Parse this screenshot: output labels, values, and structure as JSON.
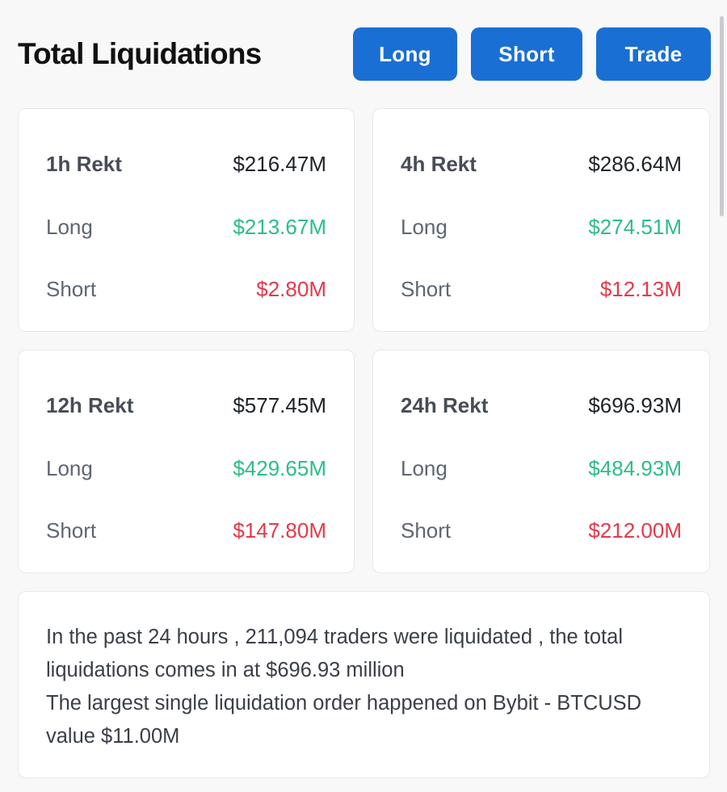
{
  "header": {
    "title": "Total Liquidations",
    "buttons": {
      "long": "Long",
      "short": "Short",
      "trade": "Trade"
    }
  },
  "cards": [
    {
      "period": "1h Rekt",
      "total": "$216.47M",
      "long_label": "Long",
      "long_value": "$213.67M",
      "short_label": "Short",
      "short_value": "$2.80M"
    },
    {
      "period": "4h Rekt",
      "total": "$286.64M",
      "long_label": "Long",
      "long_value": "$274.51M",
      "short_label": "Short",
      "short_value": "$12.13M"
    },
    {
      "period": "12h Rekt",
      "total": "$577.45M",
      "long_label": "Long",
      "long_value": "$429.65M",
      "short_label": "Short",
      "short_value": "$147.80M"
    },
    {
      "period": "24h Rekt",
      "total": "$696.93M",
      "long_label": "Long",
      "long_value": "$484.93M",
      "short_label": "Short",
      "short_value": "$212.00M"
    }
  ],
  "summary": {
    "line1": "In the past 24 hours , 211,094 traders were liquidated , the total liquidations comes in at $696.93 million",
    "line2": "The largest single liquidation order happened on Bybit - BTCUSD value $11.00M"
  },
  "colors": {
    "button": "#1a6fd4",
    "long": "#2ebd85",
    "short": "#e33a4b"
  }
}
